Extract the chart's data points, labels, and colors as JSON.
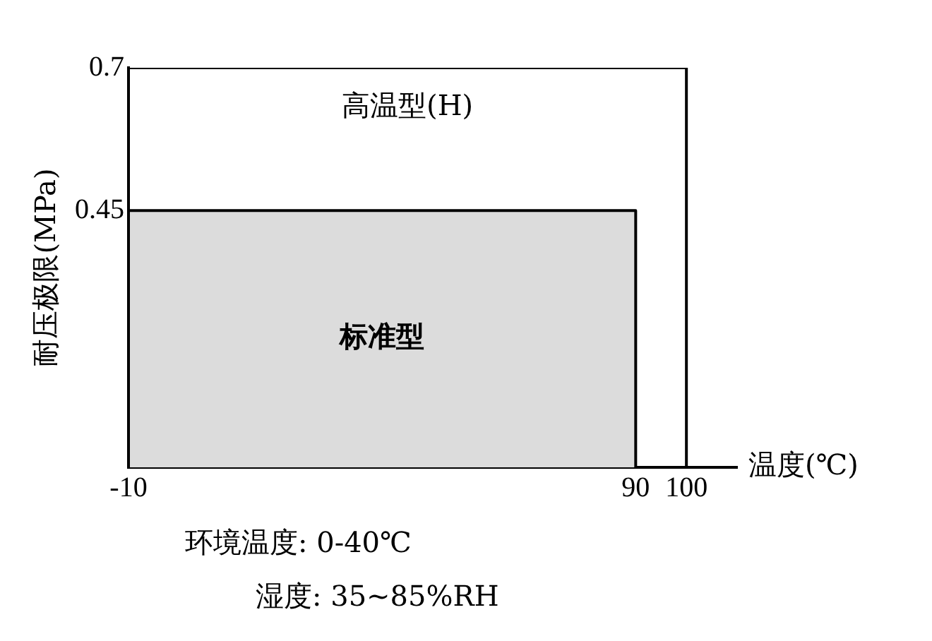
{
  "chart_data": {
    "type": "line",
    "xlabel": "温度(℃)",
    "ylabel": "耐压极限(MPa)",
    "series": [
      {
        "name": "高温型(H)",
        "type": "line",
        "x": [
          -10,
          -10,
          100,
          100
        ],
        "values": [
          0,
          0.7,
          0.7,
          0
        ],
        "color": "#000000"
      },
      {
        "name": "标准型",
        "type": "area",
        "x": [
          -10,
          -10,
          90,
          90
        ],
        "values": [
          0,
          0.45,
          0.45,
          0
        ],
        "color": "#dcdcdc"
      }
    ],
    "xlim": [
      -10,
      110
    ],
    "xticks": [
      -10,
      90,
      100
    ],
    "ylim": [
      0,
      0.7
    ],
    "yticks": [
      0.45,
      0.7
    ],
    "grid": false,
    "legend": false,
    "marker": "none",
    "annotations": [
      "环境温度: 0-40℃",
      "湿度: 35~85%RH"
    ]
  }
}
